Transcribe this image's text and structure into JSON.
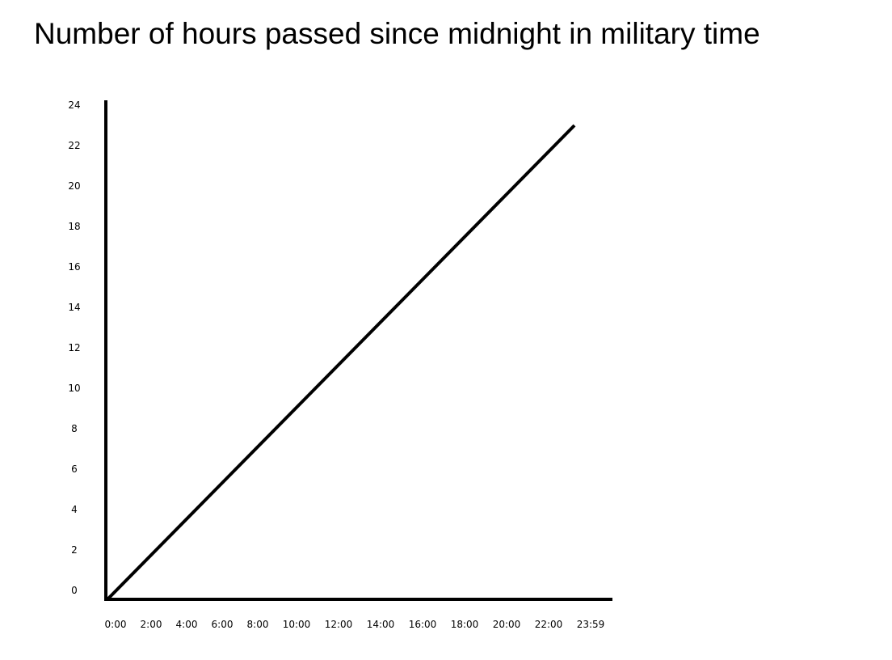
{
  "chart_data": {
    "type": "line",
    "title": "Number of hours passed since midnight in military time",
    "xlabel": "",
    "ylabel": "",
    "x_tick_labels": [
      "0:00",
      "2:00",
      "4:00",
      "6:00",
      "8:00",
      "10:00",
      "12:00",
      "14:00",
      "16:00",
      "18:00",
      "20:00",
      "22:00",
      "23:59"
    ],
    "y_tick_labels": [
      "0",
      "2",
      "4",
      "6",
      "8",
      "10",
      "12",
      "14",
      "16",
      "18",
      "20",
      "22",
      "24"
    ],
    "ylim": [
      0,
      24
    ],
    "grid": false,
    "series": [
      {
        "x": [
          "0:00",
          "23:59"
        ],
        "values": [
          0,
          23
        ]
      }
    ],
    "colors": {
      "line": "#000000",
      "axis": "#000000"
    }
  }
}
